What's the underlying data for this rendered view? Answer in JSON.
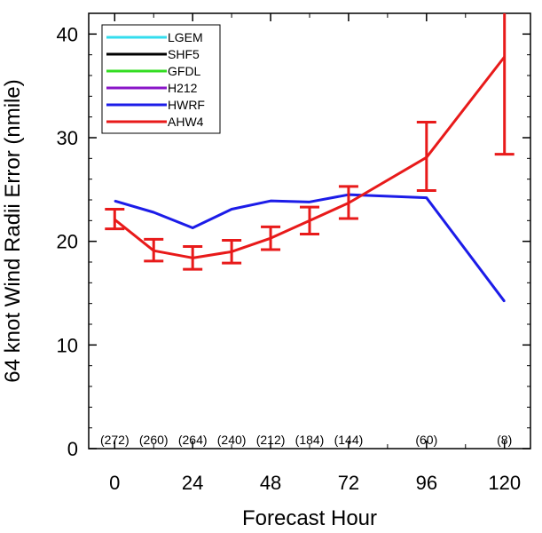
{
  "chart_data": {
    "type": "line",
    "xlabel": "Forecast Hour",
    "ylabel": "64 knot Wind Radii Error (nmile)",
    "xlim": [
      -8,
      128
    ],
    "ylim": [
      0,
      42
    ],
    "xticks": [
      0,
      24,
      48,
      72,
      96,
      120
    ],
    "yticks": [
      0,
      10,
      20,
      30,
      40
    ],
    "grid": false,
    "legend_placement": "top-left",
    "legend": [
      {
        "name": "LGEM",
        "color": "#33ddee"
      },
      {
        "name": "SHF5",
        "color": "#000000"
      },
      {
        "name": "GFDL",
        "color": "#33dd22"
      },
      {
        "name": "H212",
        "color": "#8a16c8"
      },
      {
        "name": "HWRF",
        "color": "#1c1ce8"
      },
      {
        "name": "AHW4",
        "color": "#e81a1a"
      }
    ],
    "series": [
      {
        "name": "HWRF",
        "color": "#1c1ce8",
        "x": [
          0,
          12,
          24,
          36,
          48,
          60,
          72,
          96,
          120
        ],
        "y": [
          23.9,
          22.8,
          21.3,
          23.1,
          23.9,
          23.8,
          24.5,
          24.2,
          14.2
        ]
      },
      {
        "name": "AHW4",
        "color": "#e81a1a",
        "x": [
          0,
          12,
          24,
          36,
          48,
          60,
          72,
          96,
          120
        ],
        "y": [
          22.1,
          19.1,
          18.4,
          19.0,
          20.3,
          22.0,
          23.7,
          28.1,
          37.8
        ],
        "err_low": [
          21.2,
          18.1,
          17.3,
          17.9,
          19.2,
          20.7,
          22.2,
          24.9,
          28.4
        ],
        "err_high": [
          23.1,
          20.2,
          19.5,
          20.1,
          21.4,
          23.3,
          25.3,
          31.5,
          42.0
        ]
      }
    ],
    "sample_counts": [
      {
        "x": 0,
        "label": "(272)"
      },
      {
        "x": 12,
        "label": "(260)"
      },
      {
        "x": 24,
        "label": "(264)"
      },
      {
        "x": 36,
        "label": "(240)"
      },
      {
        "x": 48,
        "label": "(212)"
      },
      {
        "x": 60,
        "label": "(184)"
      },
      {
        "x": 72,
        "label": "(144)"
      },
      {
        "x": 96,
        "label": "(60)"
      },
      {
        "x": 120,
        "label": "(8)"
      }
    ]
  }
}
